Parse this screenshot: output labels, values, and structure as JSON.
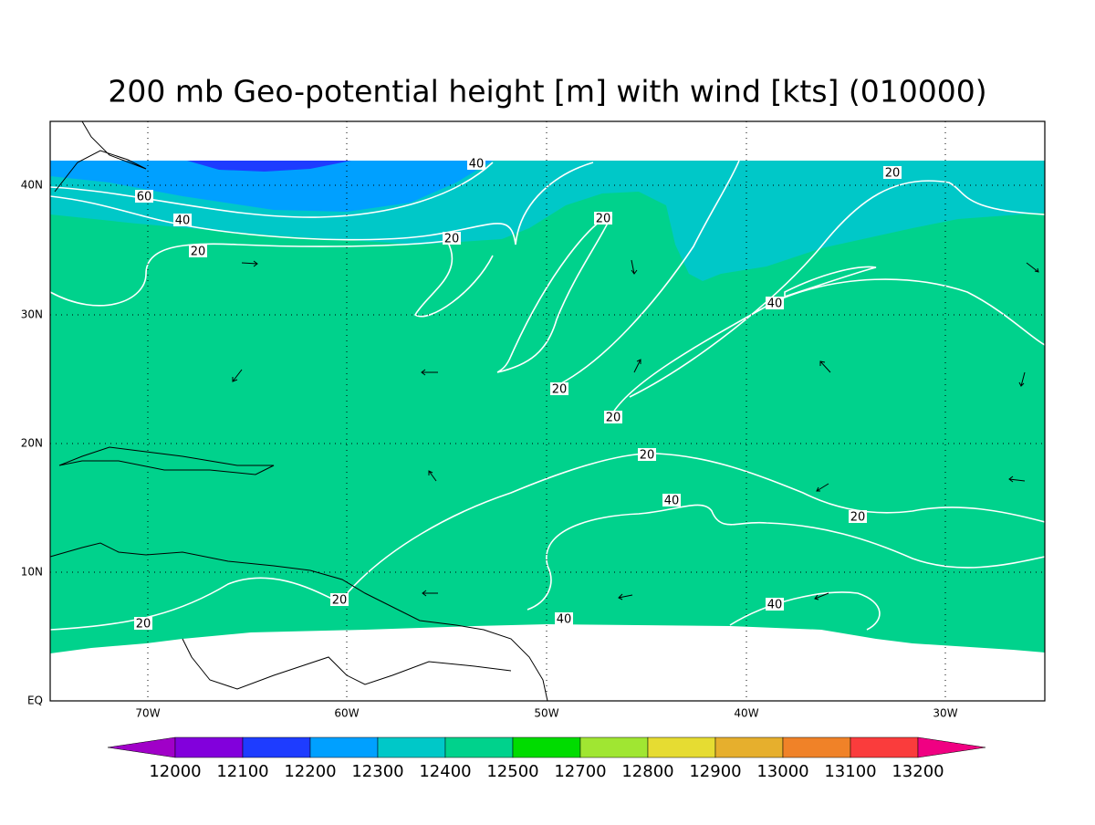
{
  "title": "200 mb Geo-potential height [m] with wind [kts] (010000)",
  "map": {
    "lon_labels": [
      "70W",
      "60W",
      "50W",
      "40W",
      "30W"
    ],
    "lat_labels": [
      "EQ",
      "10N",
      "20N",
      "30N",
      "40N"
    ],
    "contour_labels": [
      40,
      20,
      60,
      40,
      20,
      20,
      20,
      40,
      20,
      20,
      20,
      40,
      20,
      20,
      40,
      40,
      20
    ]
  },
  "colorbar": {
    "levels": [
      12000,
      12100,
      12200,
      12300,
      12400,
      12500,
      12700,
      12800,
      12900,
      13000,
      13100,
      13200
    ],
    "colors": [
      "#a000c8",
      "#8200dc",
      "#1e3cff",
      "#00a0ff",
      "#00c8c8",
      "#00d28c",
      "#00dc00",
      "#a0e632",
      "#e6dc32",
      "#e6af2d",
      "#f08228",
      "#fa3c3c",
      "#f00082"
    ]
  }
}
